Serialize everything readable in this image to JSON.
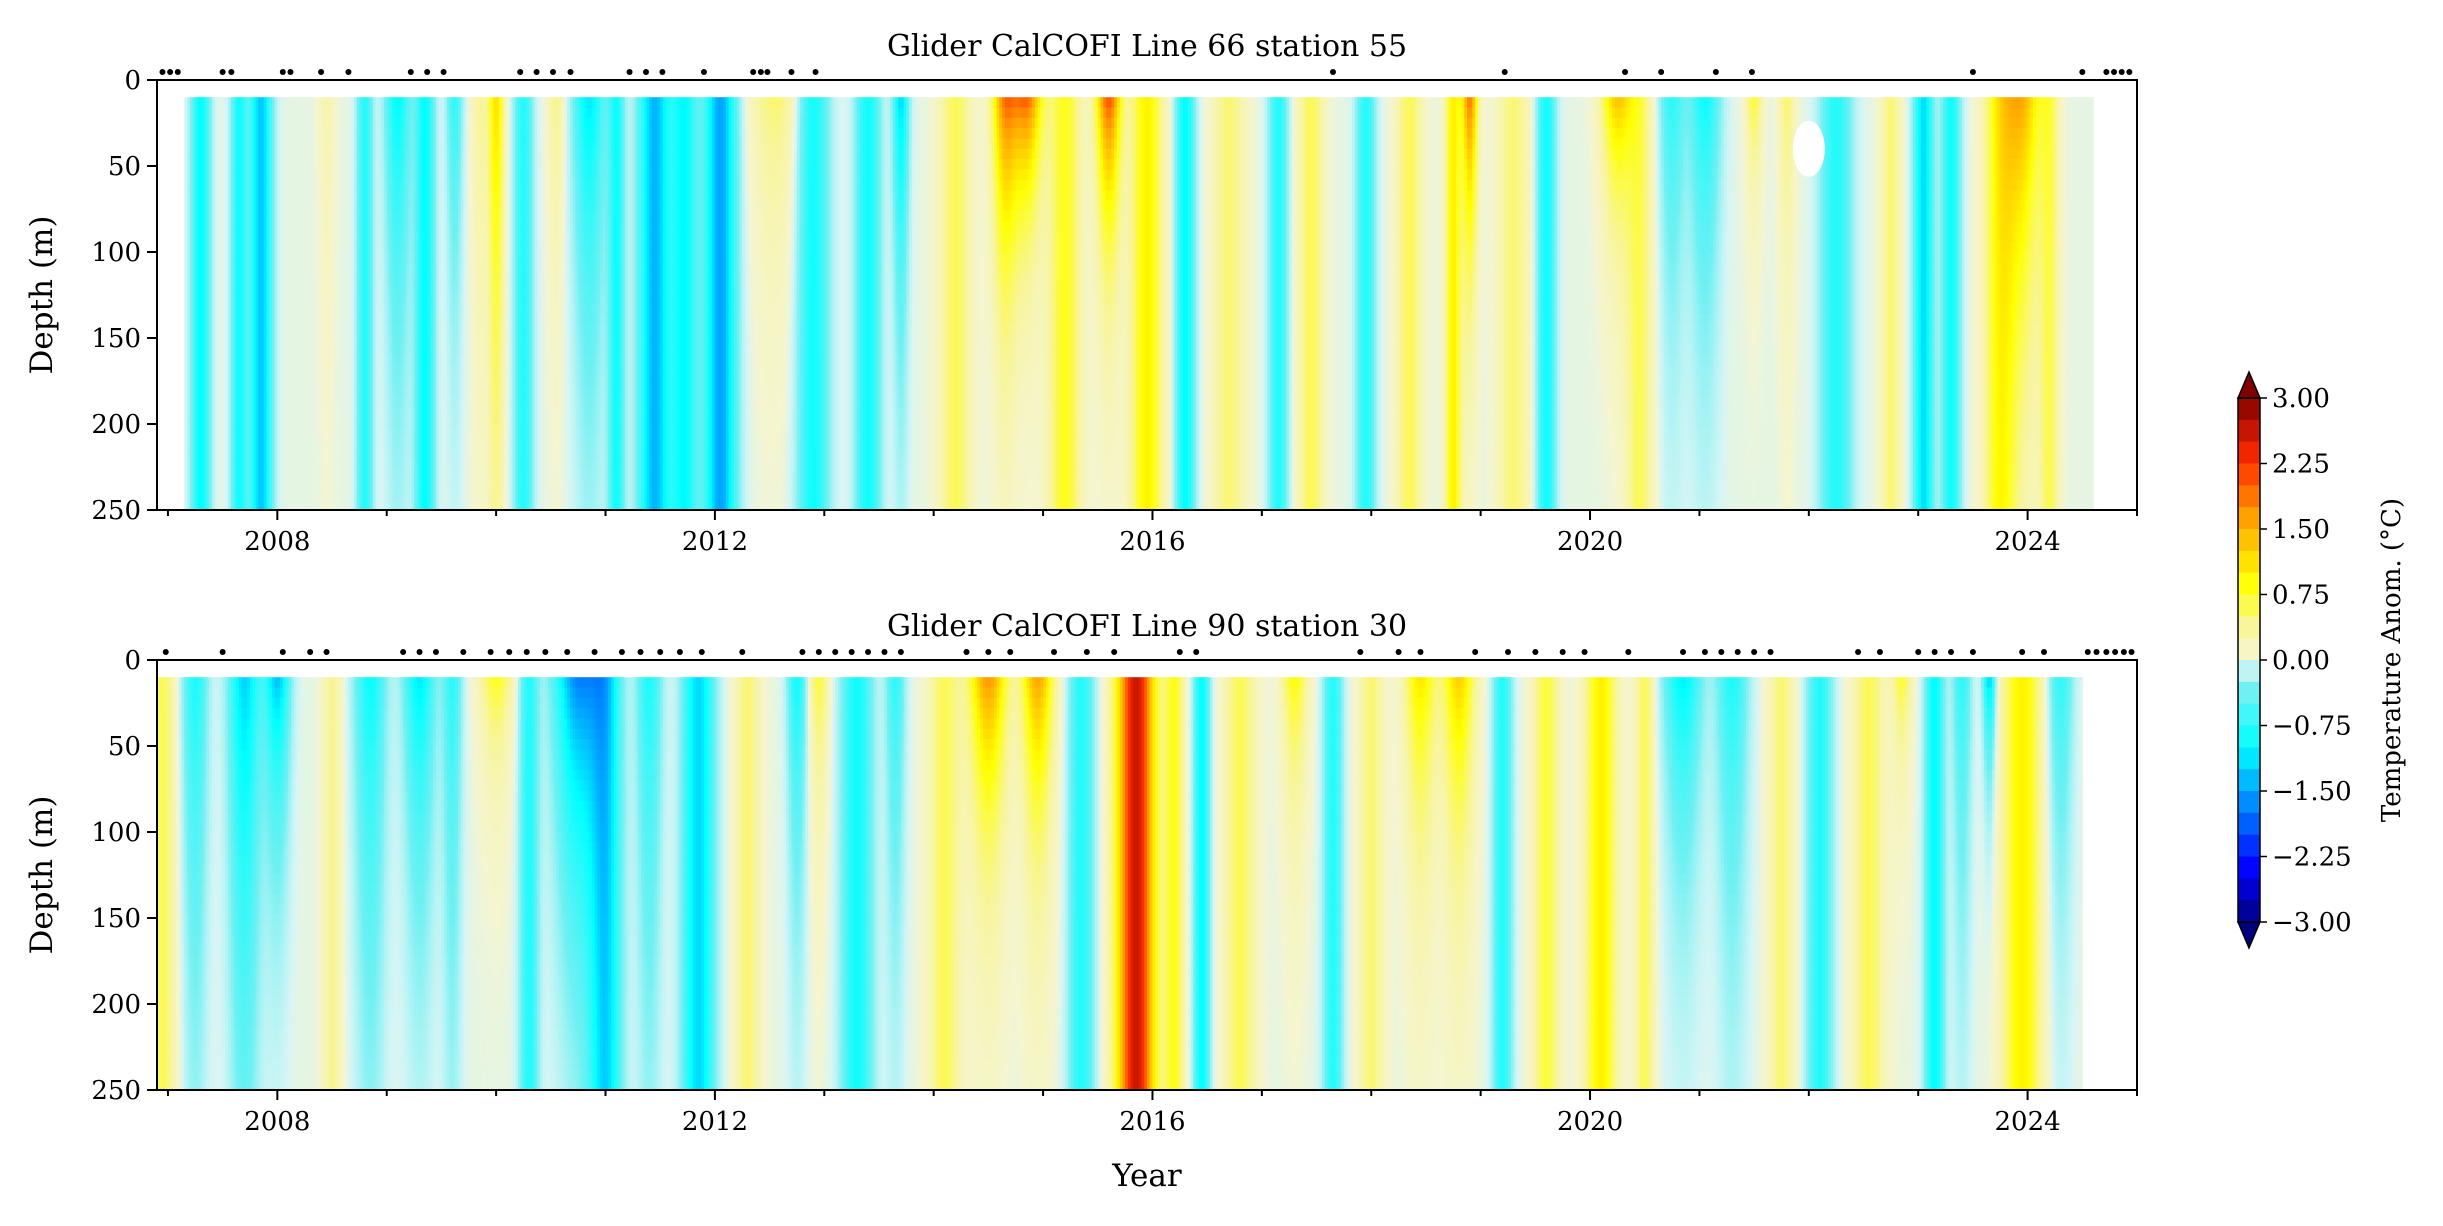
{
  "chart_data": [
    {
      "type": "heatmap",
      "title": "Glider CalCOFI Line  66 station 55",
      "xlabel": "",
      "ylabel": "Depth (m)",
      "xlim": [
        2006.9,
        2025.0
      ],
      "ylim": [
        0,
        250
      ],
      "y_inverted": true,
      "x_ticks": [
        2008,
        2012,
        2016,
        2020,
        2024
      ],
      "x_tick_labels": [
        "2008",
        "2012",
        "2016",
        "2020",
        "2024"
      ],
      "y_ticks": [
        0,
        50,
        100,
        150,
        200,
        250
      ],
      "y_tick_labels": [
        "0",
        "50",
        "100",
        "150",
        "200",
        "250"
      ],
      "data_extent": [
        2007.15,
        2024.6
      ],
      "depth_extent": [
        10,
        250
      ],
      "sample_times": [
        2006.95,
        2007.02,
        2007.09,
        2007.5,
        2007.58,
        2008.05,
        2008.12,
        2008.4,
        2008.65,
        2009.22,
        2009.37,
        2009.52,
        2010.22,
        2010.37,
        2010.52,
        2010.68,
        2011.22,
        2011.37,
        2011.52,
        2011.9,
        2012.35,
        2012.42,
        2012.48,
        2012.7,
        2012.92,
        2017.65,
        2019.22,
        2020.32,
        2020.65,
        2021.15,
        2021.48,
        2023.5,
        2024.5,
        2024.72,
        2024.79,
        2024.86,
        2024.93
      ],
      "anomaly_events": [
        {
          "t": 2007.3,
          "w": 0.06,
          "a": -1.0,
          "d": 1.0
        },
        {
          "t": 2007.65,
          "w": 0.05,
          "a": -0.9,
          "d": 1.0
        },
        {
          "t": 2007.85,
          "w": 0.07,
          "a": -1.3,
          "d": 1.0
        },
        {
          "t": 2008.45,
          "w": 0.05,
          "a": 0.3,
          "d": 0.5
        },
        {
          "t": 2008.8,
          "w": 0.05,
          "a": -0.8,
          "d": 1.0
        },
        {
          "t": 2009.1,
          "w": 0.08,
          "a": -1.1,
          "d": 0.6
        },
        {
          "t": 2009.35,
          "w": 0.06,
          "a": -1.0,
          "d": 1.0
        },
        {
          "t": 2009.62,
          "w": 0.05,
          "a": -0.8,
          "d": 0.5
        },
        {
          "t": 2009.85,
          "w": 0.05,
          "a": 0.4,
          "d": 0.7
        },
        {
          "t": 2010.0,
          "w": 0.05,
          "a": 1.2,
          "d": 0.9
        },
        {
          "t": 2010.25,
          "w": 0.06,
          "a": -0.8,
          "d": 1.0
        },
        {
          "t": 2010.55,
          "w": 0.05,
          "a": 0.5,
          "d": 0.4
        },
        {
          "t": 2010.85,
          "w": 0.1,
          "a": -1.2,
          "d": 0.6
        },
        {
          "t": 2011.1,
          "w": 0.05,
          "a": -0.9,
          "d": 1.0
        },
        {
          "t": 2011.45,
          "w": 0.1,
          "a": -1.4,
          "d": 1.0
        },
        {
          "t": 2011.72,
          "w": 0.08,
          "a": -1.0,
          "d": 1.0
        },
        {
          "t": 2012.05,
          "w": 0.1,
          "a": -1.5,
          "d": 1.0
        },
        {
          "t": 2012.55,
          "w": 0.15,
          "a": 0.6,
          "d": 0.35
        },
        {
          "t": 2012.9,
          "w": 0.1,
          "a": -0.9,
          "d": 1.0
        },
        {
          "t": 2013.4,
          "w": 0.08,
          "a": -0.9,
          "d": 1.0
        },
        {
          "t": 2013.7,
          "w": 0.05,
          "a": -1.3,
          "d": 0.5
        },
        {
          "t": 2014.2,
          "w": 0.1,
          "a": 0.6,
          "d": 1.0
        },
        {
          "t": 2014.65,
          "w": 0.08,
          "a": 1.9,
          "d": 0.4
        },
        {
          "t": 2014.85,
          "w": 0.1,
          "a": 2.3,
          "d": 0.25
        },
        {
          "t": 2015.2,
          "w": 0.1,
          "a": 0.8,
          "d": 1.0
        },
        {
          "t": 2015.6,
          "w": 0.08,
          "a": 2.4,
          "d": 0.3
        },
        {
          "t": 2015.95,
          "w": 0.1,
          "a": 1.0,
          "d": 1.0
        },
        {
          "t": 2016.3,
          "w": 0.06,
          "a": -1.0,
          "d": 1.0
        },
        {
          "t": 2016.7,
          "w": 0.1,
          "a": 0.5,
          "d": 1.0
        },
        {
          "t": 2017.15,
          "w": 0.06,
          "a": -0.8,
          "d": 1.0
        },
        {
          "t": 2017.45,
          "w": 0.08,
          "a": 0.6,
          "d": 1.0
        },
        {
          "t": 2017.95,
          "w": 0.06,
          "a": -0.8,
          "d": 1.0
        },
        {
          "t": 2018.35,
          "w": 0.08,
          "a": 0.6,
          "d": 1.0
        },
        {
          "t": 2018.75,
          "w": 0.05,
          "a": 1.0,
          "d": 1.0
        },
        {
          "t": 2018.9,
          "w": 0.05,
          "a": 2.1,
          "d": 0.35
        },
        {
          "t": 2019.3,
          "w": 0.1,
          "a": 0.5,
          "d": 1.0
        },
        {
          "t": 2019.6,
          "w": 0.06,
          "a": -0.9,
          "d": 1.0
        },
        {
          "t": 2020.25,
          "w": 0.1,
          "a": 1.6,
          "d": 0.25
        },
        {
          "t": 2020.45,
          "w": 0.08,
          "a": 0.6,
          "d": 1.0
        },
        {
          "t": 2020.75,
          "w": 0.08,
          "a": -0.8,
          "d": 0.5
        },
        {
          "t": 2021.05,
          "w": 0.1,
          "a": -1.0,
          "d": 0.5
        },
        {
          "t": 2021.5,
          "w": 0.05,
          "a": 0.9,
          "d": 0.2
        },
        {
          "t": 2021.8,
          "w": 0.05,
          "a": 0.6,
          "d": 0.4
        },
        {
          "t": 2022.25,
          "w": 0.1,
          "a": -0.8,
          "d": 1.0
        },
        {
          "t": 2022.75,
          "w": 0.06,
          "a": 0.5,
          "d": 1.0
        },
        {
          "t": 2023.05,
          "w": 0.06,
          "a": -1.2,
          "d": 1.0
        },
        {
          "t": 2023.3,
          "w": 0.06,
          "a": -0.9,
          "d": 1.0
        },
        {
          "t": 2023.75,
          "w": 0.1,
          "a": 0.9,
          "d": 1.0
        },
        {
          "t": 2023.95,
          "w": 0.12,
          "a": 1.6,
          "d": 0.5
        },
        {
          "t": 2024.2,
          "w": 0.06,
          "a": 0.6,
          "d": 1.0
        }
      ],
      "missing_regions": [
        {
          "x": 2022.0,
          "depth": 40
        }
      ]
    },
    {
      "type": "heatmap",
      "title": "Glider CalCOFI Line  90 station 30",
      "xlabel": "Year",
      "ylabel": "Depth (m)",
      "xlim": [
        2006.9,
        2025.0
      ],
      "ylim": [
        0,
        250
      ],
      "y_inverted": true,
      "x_ticks": [
        2008,
        2012,
        2016,
        2020,
        2024
      ],
      "x_tick_labels": [
        "2008",
        "2012",
        "2016",
        "2020",
        "2024"
      ],
      "y_ticks": [
        0,
        50,
        100,
        150,
        200,
        250
      ],
      "y_tick_labels": [
        "0",
        "50",
        "100",
        "150",
        "200",
        "250"
      ],
      "data_extent": [
        2006.9,
        2024.5
      ],
      "depth_extent": [
        10,
        250
      ],
      "sample_times": [
        2006.98,
        2007.5,
        2008.05,
        2008.3,
        2008.45,
        2009.15,
        2009.3,
        2009.45,
        2009.7,
        2009.95,
        2010.12,
        2010.28,
        2010.45,
        2010.65,
        2010.9,
        2011.15,
        2011.32,
        2011.5,
        2011.68,
        2011.88,
        2012.25,
        2012.8,
        2012.95,
        2013.1,
        2013.25,
        2013.4,
        2013.55,
        2013.7,
        2014.3,
        2014.5,
        2014.7,
        2015.1,
        2015.4,
        2015.65,
        2016.25,
        2016.4,
        2017.9,
        2018.25,
        2018.45,
        2018.95,
        2019.25,
        2019.5,
        2019.75,
        2019.95,
        2020.35,
        2020.85,
        2021.05,
        2021.2,
        2021.35,
        2021.5,
        2021.65,
        2022.45,
        2022.65,
        2023.0,
        2023.15,
        2023.3,
        2023.5,
        2023.95,
        2024.15,
        2024.55,
        2024.63,
        2024.72,
        2024.8,
        2024.88,
        2024.95
      ],
      "anomaly_events": [
        {
          "t": 2006.95,
          "w": 0.08,
          "a": 0.6,
          "d": 1.0
        },
        {
          "t": 2007.25,
          "w": 0.08,
          "a": -0.9,
          "d": 0.8
        },
        {
          "t": 2007.7,
          "w": 0.1,
          "a": -1.3,
          "d": 0.9
        },
        {
          "t": 2008.0,
          "w": 0.08,
          "a": -1.5,
          "d": 0.35
        },
        {
          "t": 2008.5,
          "w": 0.06,
          "a": 0.4,
          "d": 1.0
        },
        {
          "t": 2008.85,
          "w": 0.1,
          "a": -1.0,
          "d": 0.8
        },
        {
          "t": 2009.3,
          "w": 0.1,
          "a": -1.2,
          "d": 0.5
        },
        {
          "t": 2009.6,
          "w": 0.06,
          "a": -0.8,
          "d": 0.8
        },
        {
          "t": 2010.0,
          "w": 0.1,
          "a": 1.0,
          "d": 0.2
        },
        {
          "t": 2010.3,
          "w": 0.06,
          "a": -0.8,
          "d": 1.0
        },
        {
          "t": 2010.75,
          "w": 0.15,
          "a": -1.8,
          "d": 0.5
        },
        {
          "t": 2011.0,
          "w": 0.1,
          "a": -1.2,
          "d": 1.0
        },
        {
          "t": 2011.4,
          "w": 0.08,
          "a": -0.9,
          "d": 0.8
        },
        {
          "t": 2011.85,
          "w": 0.1,
          "a": -1.2,
          "d": 1.0
        },
        {
          "t": 2012.3,
          "w": 0.08,
          "a": 0.5,
          "d": 1.0
        },
        {
          "t": 2012.75,
          "w": 0.06,
          "a": -1.0,
          "d": 0.5
        },
        {
          "t": 2012.95,
          "w": 0.06,
          "a": 0.8,
          "d": 0.3
        },
        {
          "t": 2013.3,
          "w": 0.1,
          "a": -0.9,
          "d": 1.0
        },
        {
          "t": 2013.65,
          "w": 0.06,
          "a": -0.8,
          "d": 0.6
        },
        {
          "t": 2014.1,
          "w": 0.1,
          "a": 0.6,
          "d": 1.0
        },
        {
          "t": 2014.5,
          "w": 0.12,
          "a": 1.9,
          "d": 0.35
        },
        {
          "t": 2014.95,
          "w": 0.1,
          "a": 1.8,
          "d": 0.35
        },
        {
          "t": 2015.35,
          "w": 0.08,
          "a": -0.8,
          "d": 1.0
        },
        {
          "t": 2015.85,
          "w": 0.12,
          "a": 2.6,
          "d": 1.0
        },
        {
          "t": 2016.2,
          "w": 0.06,
          "a": 0.8,
          "d": 1.0
        },
        {
          "t": 2016.45,
          "w": 0.05,
          "a": -1.0,
          "d": 1.0
        },
        {
          "t": 2016.8,
          "w": 0.1,
          "a": 0.6,
          "d": 1.0
        },
        {
          "t": 2017.3,
          "w": 0.08,
          "a": 1.0,
          "d": 0.3
        },
        {
          "t": 2017.65,
          "w": 0.06,
          "a": -0.8,
          "d": 1.0
        },
        {
          "t": 2018.0,
          "w": 0.08,
          "a": 0.5,
          "d": 1.0
        },
        {
          "t": 2018.45,
          "w": 0.1,
          "a": 1.2,
          "d": 0.4
        },
        {
          "t": 2018.8,
          "w": 0.1,
          "a": 1.4,
          "d": 0.4
        },
        {
          "t": 2019.2,
          "w": 0.06,
          "a": -0.8,
          "d": 1.0
        },
        {
          "t": 2019.6,
          "w": 0.08,
          "a": 0.7,
          "d": 1.0
        },
        {
          "t": 2020.1,
          "w": 0.1,
          "a": 1.0,
          "d": 1.0
        },
        {
          "t": 2020.5,
          "w": 0.06,
          "a": 0.6,
          "d": 1.0
        },
        {
          "t": 2020.85,
          "w": 0.12,
          "a": -1.2,
          "d": 0.4
        },
        {
          "t": 2021.3,
          "w": 0.1,
          "a": -0.9,
          "d": 0.6
        },
        {
          "t": 2021.75,
          "w": 0.08,
          "a": 0.5,
          "d": 1.0
        },
        {
          "t": 2022.1,
          "w": 0.08,
          "a": -0.8,
          "d": 1.0
        },
        {
          "t": 2022.55,
          "w": 0.1,
          "a": 0.6,
          "d": 1.0
        },
        {
          "t": 2022.85,
          "w": 0.06,
          "a": 0.9,
          "d": 0.2
        },
        {
          "t": 2023.15,
          "w": 0.06,
          "a": -1.0,
          "d": 1.0
        },
        {
          "t": 2023.4,
          "w": 0.06,
          "a": -0.8,
          "d": 0.6
        },
        {
          "t": 2023.65,
          "w": 0.04,
          "a": -1.6,
          "d": 0.2
        },
        {
          "t": 2023.95,
          "w": 0.12,
          "a": 1.0,
          "d": 1.0
        },
        {
          "t": 2024.3,
          "w": 0.08,
          "a": -0.8,
          "d": 0.5
        }
      ]
    }
  ],
  "colorbar": {
    "label": "Temperature Anom. (°C)",
    "vmin": -3.0,
    "vmax": 3.0,
    "extend": "both",
    "ticks": [
      3.0,
      2.25,
      1.5,
      0.75,
      0.0,
      -0.75,
      -1.5,
      -2.25,
      -3.0
    ],
    "tick_labels": [
      "3.00",
      "2.25",
      "1.50",
      "0.75",
      "0.00",
      "−0.75",
      "−1.50",
      "−2.25",
      "−3.00"
    ],
    "colormap": "jet",
    "band_colors": [
      "#00007f",
      "#0000ff",
      "#007fff",
      "#00ffff",
      "#d6f5f5",
      "#f5f5d0",
      "#ffff00",
      "#ff7f00",
      "#ff0000",
      "#7f0000"
    ]
  }
}
